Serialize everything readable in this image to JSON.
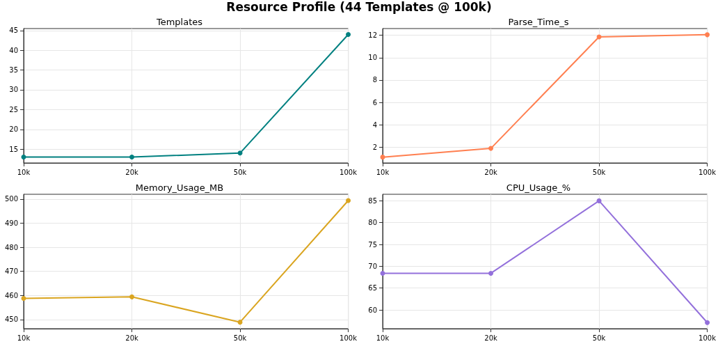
{
  "chart_data": [
    {
      "type": "line",
      "title": "Templates",
      "annotations": [
        "Resource Profile (44 Templates @ 100k)"
      ],
      "categories": [
        "10k",
        "20k",
        "50k",
        "100k"
      ],
      "series": [
        {
          "color": "#008080",
          "values": [
            13,
            13,
            14,
            44
          ]
        }
      ],
      "ylim": [
        11.5,
        45.5
      ],
      "yticks": [
        15,
        20,
        25,
        30,
        35,
        40,
        45
      ],
      "grid": true,
      "marker": "circle",
      "line_style": "solid"
    },
    {
      "type": "line",
      "title": "Parse_Time_s",
      "categories": [
        "10k",
        "20k",
        "50k",
        "100k"
      ],
      "series": [
        {
          "color": "#ff7f50",
          "values": [
            1.12,
            1.9,
            11.85,
            12.05
          ]
        }
      ],
      "ylim": [
        0.6,
        12.6
      ],
      "yticks": [
        2,
        4,
        6,
        8,
        10,
        12
      ],
      "grid": true,
      "marker": "circle",
      "line_style": "solid"
    },
    {
      "type": "line",
      "title": "Memory_Usage_MB",
      "categories": [
        "10k",
        "20k",
        "50k",
        "100k"
      ],
      "series": [
        {
          "color": "#daa520",
          "values": [
            458.8,
            459.4,
            448.9,
            499.4
          ]
        }
      ],
      "ylim": [
        446.2,
        502
      ],
      "yticks": [
        450,
        460,
        470,
        480,
        490,
        500
      ],
      "grid": true,
      "marker": "circle",
      "line_style": "solid"
    },
    {
      "type": "line",
      "title": "CPU_Usage_%",
      "categories": [
        "10k",
        "20k",
        "50k",
        "100k"
      ],
      "series": [
        {
          "color": "#9370db",
          "values": [
            68.4,
            68.4,
            85,
            57.1
          ]
        }
      ],
      "ylim": [
        55.7,
        86.5
      ],
      "yticks": [
        60,
        65,
        70,
        75,
        80,
        85
      ],
      "grid": true,
      "marker": "circle",
      "line_style": "solid"
    }
  ]
}
